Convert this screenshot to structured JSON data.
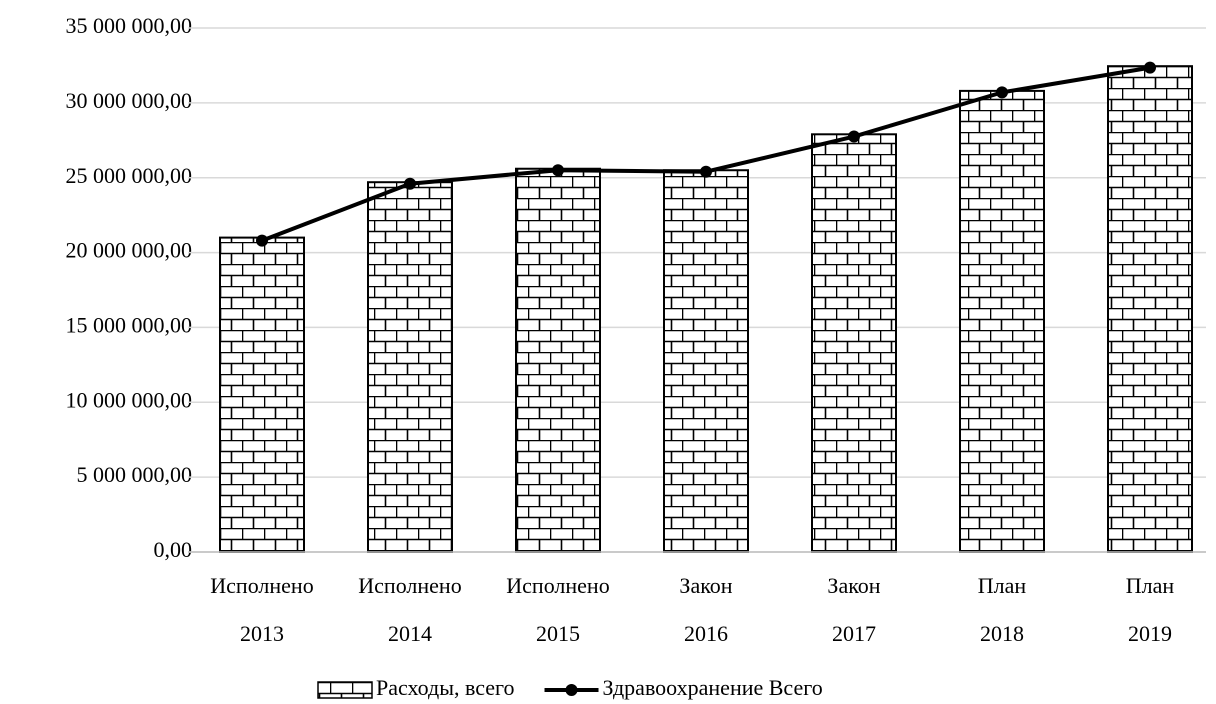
{
  "chart_data": {
    "type": "bar-line",
    "categories": [
      [
        "Исполнено",
        "2013"
      ],
      [
        "Исполнено",
        "2014"
      ],
      [
        "Исполнено",
        "2015"
      ],
      [
        "Закон",
        "2016"
      ],
      [
        "Закон",
        "2017"
      ],
      [
        "План",
        "2018"
      ],
      [
        "План",
        "2019"
      ]
    ],
    "series": [
      {
        "name": "Расходы, всего",
        "type": "bar",
        "color": "#000000",
        "values": [
          21000000,
          24700000,
          25600000,
          25500000,
          27900000,
          30800000,
          32450000
        ]
      },
      {
        "name": "Здравоохранение Всего",
        "type": "line",
        "color": "#000000",
        "values": [
          20800000,
          24600000,
          25500000,
          25400000,
          27750000,
          30700000,
          32350000
        ]
      }
    ],
    "ylim": [
      0,
      35000000
    ],
    "yticks": [
      {
        "value": 0,
        "label": "0,00"
      },
      {
        "value": 5000000,
        "label": "5 000 000,00"
      },
      {
        "value": 10000000,
        "label": "10 000 000,00"
      },
      {
        "value": 15000000,
        "label": "15 000 000,00"
      },
      {
        "value": 20000000,
        "label": "20 000 000,00"
      },
      {
        "value": 25000000,
        "label": "25 000 000,00"
      },
      {
        "value": 30000000,
        "label": "30 000 000,00"
      },
      {
        "value": 35000000,
        "label": "35 000 000,00"
      }
    ],
    "grid": true,
    "legend": "bottom"
  }
}
